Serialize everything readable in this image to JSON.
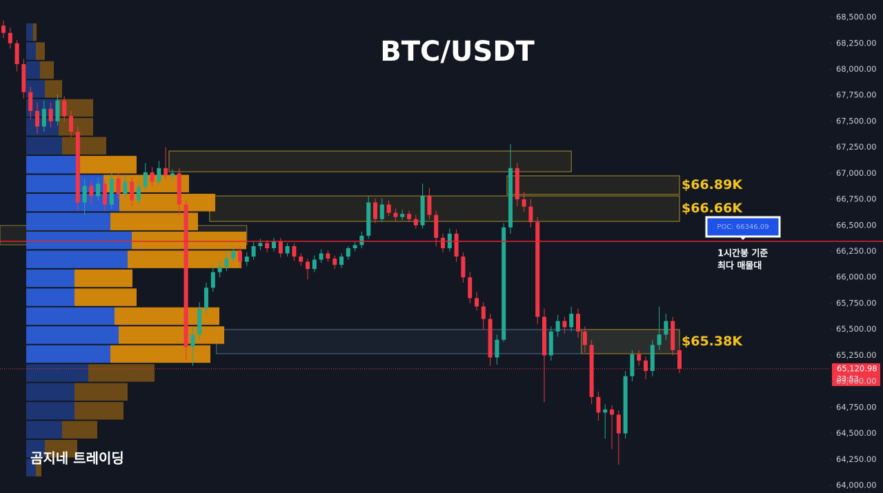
{
  "chart_data": {
    "type": "candlestick",
    "title": "BTC/USDT",
    "watermark": "곰지네 트레이딩",
    "ylim": [
      63927,
      68666
    ],
    "yticks": [
      {
        "value": 64000,
        "label": "64,000.00"
      },
      {
        "value": 64250,
        "label": "64,250.00"
      },
      {
        "value": 64500,
        "label": "64,500.00"
      },
      {
        "value": 64750,
        "label": "64,750.00"
      },
      {
        "value": 65000,
        "label": "65,000.00"
      },
      {
        "value": 65250,
        "label": "65,250.00"
      },
      {
        "value": 65500,
        "label": "65,500.00"
      },
      {
        "value": 65750,
        "label": "65,750.00"
      },
      {
        "value": 66000,
        "label": "66,000.00"
      },
      {
        "value": 66250,
        "label": "66,250.00"
      },
      {
        "value": 66500,
        "label": "66,500.00"
      },
      {
        "value": 66750,
        "label": "66,750.00"
      },
      {
        "value": 67000,
        "label": "67,000.00"
      },
      {
        "value": 67250,
        "label": "67,250.00"
      },
      {
        "value": 67500,
        "label": "67,500.00"
      },
      {
        "value": 67750,
        "label": "67,750.00"
      },
      {
        "value": 68000,
        "label": "68,000.00"
      },
      {
        "value": 68250,
        "label": "68,250.00"
      },
      {
        "value": 68500,
        "label": "68,500.00"
      }
    ],
    "up_color": "#22ab94",
    "down_color": "#f23645",
    "ohlc": [
      [
        68420,
        68470,
        68300,
        68350
      ],
      [
        68350,
        68400,
        68200,
        68250
      ],
      [
        68250,
        68280,
        67980,
        68050
      ],
      [
        68050,
        68100,
        67720,
        67780
      ],
      [
        67780,
        67830,
        67520,
        67600
      ],
      [
        67600,
        67680,
        67380,
        67450
      ],
      [
        67450,
        67700,
        67400,
        67620
      ],
      [
        67620,
        67680,
        67440,
        67500
      ],
      [
        67500,
        67760,
        67460,
        67700
      ],
      [
        67700,
        67740,
        67500,
        67550
      ],
      [
        67550,
        67600,
        67350,
        67400
      ],
      [
        67400,
        67450,
        66650,
        66720
      ],
      [
        66720,
        66950,
        66600,
        66880
      ],
      [
        66880,
        66930,
        66700,
        66780
      ],
      [
        66780,
        66960,
        66740,
        66900
      ],
      [
        66900,
        66940,
        66640,
        66700
      ],
      [
        66700,
        67000,
        66660,
        66950
      ],
      [
        66950,
        67000,
        66750,
        66800
      ],
      [
        66800,
        66980,
        66760,
        66920
      ],
      [
        66920,
        66960,
        66690,
        66740
      ],
      [
        66740,
        66920,
        66700,
        66870
      ],
      [
        66870,
        67100,
        66840,
        67010
      ],
      [
        67010,
        67060,
        66880,
        66920
      ],
      [
        66920,
        67120,
        66890,
        67050
      ],
      [
        67050,
        67250,
        66940,
        66980
      ],
      [
        66980,
        67040,
        66940,
        67000
      ],
      [
        67000,
        67050,
        66600,
        66700
      ],
      [
        66700,
        66740,
        65200,
        65330
      ],
      [
        65330,
        65520,
        65150,
        65450
      ],
      [
        65450,
        65760,
        65400,
        65700
      ],
      [
        65700,
        65950,
        65650,
        65900
      ],
      [
        65900,
        66100,
        65860,
        66050
      ],
      [
        66050,
        66160,
        66000,
        66100
      ],
      [
        66100,
        66230,
        66060,
        66180
      ],
      [
        66180,
        66290,
        66140,
        66250
      ],
      [
        66250,
        66290,
        66100,
        66150
      ],
      [
        66150,
        66240,
        66110,
        66200
      ],
      [
        66200,
        66340,
        66170,
        66300
      ],
      [
        66300,
        66370,
        66260,
        66330
      ],
      [
        66330,
        66360,
        66240,
        66280
      ],
      [
        66280,
        66380,
        66250,
        66350
      ],
      [
        66350,
        66380,
        66190,
        66230
      ],
      [
        66230,
        66330,
        66200,
        66300
      ],
      [
        66300,
        66330,
        66160,
        66200
      ],
      [
        66200,
        66230,
        66110,
        66150
      ],
      [
        66150,
        66180,
        65980,
        66080
      ],
      [
        66080,
        66210,
        66050,
        66170
      ],
      [
        66170,
        66270,
        66140,
        66230
      ],
      [
        66230,
        66260,
        66150,
        66180
      ],
      [
        66180,
        66210,
        66080,
        66120
      ],
      [
        66120,
        66230,
        66090,
        66200
      ],
      [
        66200,
        66300,
        66170,
        66280
      ],
      [
        66280,
        66340,
        66250,
        66310
      ],
      [
        66310,
        66440,
        66280,
        66400
      ],
      [
        66400,
        66780,
        66370,
        66720
      ],
      [
        66720,
        66760,
        66520,
        66560
      ],
      [
        66560,
        66760,
        66530,
        66700
      ],
      [
        66700,
        66740,
        66590,
        66620
      ],
      [
        66620,
        66660,
        66540,
        66580
      ],
      [
        66580,
        66650,
        66550,
        66610
      ],
      [
        66610,
        66640,
        66530,
        66560
      ],
      [
        66560,
        66600,
        66470,
        66500
      ],
      [
        66500,
        66900,
        66470,
        66780
      ],
      [
        66780,
        66860,
        66560,
        66600
      ],
      [
        66600,
        66640,
        66300,
        66380
      ],
      [
        66380,
        66420,
        66240,
        66280
      ],
      [
        66280,
        66470,
        66250,
        66420
      ],
      [
        66420,
        66460,
        66150,
        66200
      ],
      [
        66200,
        66240,
        65950,
        66000
      ],
      [
        66000,
        66050,
        65750,
        65800
      ],
      [
        65800,
        65860,
        65680,
        65720
      ],
      [
        65720,
        65760,
        65500,
        65600
      ],
      [
        65600,
        65650,
        65150,
        65230
      ],
      [
        65230,
        65450,
        65160,
        65400
      ],
      [
        65400,
        66520,
        65380,
        66480
      ],
      [
        66480,
        67280,
        66420,
        67050
      ],
      [
        67050,
        67100,
        66680,
        66750
      ],
      [
        66750,
        66820,
        66630,
        66680
      ],
      [
        66680,
        66750,
        66480,
        66530
      ],
      [
        66530,
        66580,
        65550,
        65620
      ],
      [
        65620,
        65700,
        64800,
        65250
      ],
      [
        65250,
        65530,
        65200,
        65480
      ],
      [
        65480,
        65640,
        65430,
        65580
      ],
      [
        65580,
        65620,
        65460,
        65520
      ],
      [
        65520,
        65720,
        65480,
        65650
      ],
      [
        65650,
        65700,
        65420,
        65480
      ],
      [
        65480,
        65530,
        65280,
        65350
      ],
      [
        65350,
        65400,
        64780,
        64850
      ],
      [
        64850,
        64900,
        64620,
        64700
      ],
      [
        64700,
        64780,
        64450,
        64730
      ],
      [
        64730,
        64770,
        64350,
        64680
      ],
      [
        64680,
        64720,
        64200,
        64500
      ],
      [
        64500,
        65100,
        64450,
        65050
      ],
      [
        65050,
        65300,
        65000,
        65260
      ],
      [
        65260,
        65300,
        65150,
        65200
      ],
      [
        65200,
        65240,
        65020,
        65100
      ],
      [
        65100,
        65400,
        65050,
        65350
      ],
      [
        65350,
        65720,
        65300,
        65450
      ],
      [
        65450,
        65650,
        65400,
        65580
      ],
      [
        65580,
        65620,
        65250,
        65300
      ],
      [
        65300,
        65340,
        65080,
        65120.98
      ]
    ],
    "volume_profile": {
      "bins": [
        64080,
        64262,
        64444,
        64626,
        64808,
        64990,
        65172,
        65354,
        65536,
        65718,
        65900,
        66082,
        66264,
        66446,
        66628,
        66810,
        66992,
        67174,
        67356,
        67538,
        67720,
        67902,
        68084,
        68266,
        68448
      ],
      "up": [
        14,
        27,
        52,
        70,
        70,
        90,
        122,
        134,
        128,
        70,
        70,
        147,
        153,
        122,
        135,
        112,
        78,
        52,
        47,
        44,
        27,
        20,
        14,
        10
      ],
      "down": [
        8,
        47,
        51,
        71,
        77,
        96,
        145,
        153,
        152,
        90,
        84,
        165,
        166,
        127,
        139,
        124,
        82,
        64,
        50,
        53,
        25,
        20,
        13,
        5
      ],
      "up_color": "#2b5ed8",
      "down_color": "#d98a0c",
      "value_area": [
        65172,
        67174
      ]
    },
    "zones": [
      {
        "low": 67015,
        "high": 67214,
        "from": 25,
        "to": 84,
        "color": "#a88f2a"
      },
      {
        "low": 66797,
        "high": 66976,
        "from": 75,
        "to": 100,
        "color": "#a88f2a",
        "label": "$66.89K"
      },
      {
        "low": 66538,
        "high": 66783,
        "from": 31,
        "to": 100,
        "color": "#a88f2a",
        "label": "$66.66K"
      },
      {
        "low": 66313,
        "high": 66498,
        "from": 0,
        "to": 36,
        "color": "#8a7a3a"
      },
      {
        "low": 65266,
        "high": 65498,
        "from": 32,
        "to": 100,
        "color": "#4f6f8f"
      },
      {
        "low": 65266,
        "high": 65498,
        "from": 86,
        "to": 100,
        "color": "#a88f2a",
        "label": "$65.38K"
      }
    ],
    "poc": {
      "value": 66346.09,
      "label": "POC: 66346.09",
      "color": "#e5242b"
    },
    "note": [
      "1시간봉 기준",
      "최다 매물대"
    ],
    "last_price": {
      "value": 65120.98,
      "label": "65,120.98"
    },
    "countdown": "33:53"
  }
}
